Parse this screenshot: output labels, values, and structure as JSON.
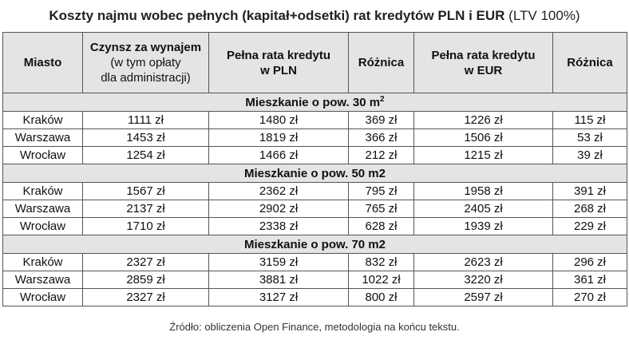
{
  "title": {
    "main": "Koszty najmu wobec pełnych (kapitał+odsetki) rat kredytów PLN i EUR",
    "suffix": "(LTV 100%)"
  },
  "headers": {
    "city": "Miasto",
    "rent_line1": "Czynsz za wynajem",
    "rent_line2": "(w tym opłaty",
    "rent_line3": "dla administracji)",
    "pln_line1": "Pełna rata kredytu",
    "pln_line2": "w PLN",
    "diff_pln": "Różnica",
    "eur_line1": "Pełna rata kredytu",
    "eur_line2": "w EUR",
    "diff_eur": "Różnica"
  },
  "sections": [
    {
      "title": "Mieszkanie o pow. 30 m",
      "title_sup": "2",
      "rows": [
        {
          "city": "Kraków",
          "rent": "1111 zł",
          "pln": "1480 zł",
          "diff_pln": "369 zł",
          "eur": "1226 zł",
          "diff_eur": "115 zł"
        },
        {
          "city": "Warszawa",
          "rent": "1453 zł",
          "pln": "1819 zł",
          "diff_pln": "366 zł",
          "eur": "1506 zł",
          "diff_eur": "53 zł"
        },
        {
          "city": "Wrocław",
          "rent": "1254 zł",
          "pln": "1466 zł",
          "diff_pln": "212 zł",
          "eur": "1215 zł",
          "diff_eur": "39 zł"
        }
      ]
    },
    {
      "title": "Mieszkanie o pow. 50 m2",
      "rows": [
        {
          "city": "Kraków",
          "rent": "1567 zł",
          "pln": "2362 zł",
          "diff_pln": "795 zł",
          "eur": "1958 zł",
          "diff_eur": "391 zł"
        },
        {
          "city": "Warszawa",
          "rent": "2137 zł",
          "pln": "2902 zł",
          "diff_pln": "765 zł",
          "eur": "2405 zł",
          "diff_eur": "268 zł"
        },
        {
          "city": "Wrocław",
          "rent": "1710 zł",
          "pln": "2338 zł",
          "diff_pln": "628 zł",
          "eur": "1939 zł",
          "diff_eur": "229 zł"
        }
      ]
    },
    {
      "title": "Mieszkanie o pow. 70 m2",
      "rows": [
        {
          "city": "Kraków",
          "rent": "2327 zł",
          "pln": "3159 zł",
          "diff_pln": "832 zł",
          "eur": "2623 zł",
          "diff_eur": "296 zł"
        },
        {
          "city": "Warszawa",
          "rent": "2859 zł",
          "pln": "3881 zł",
          "diff_pln": "1022 zł",
          "eur": "3220 zł",
          "diff_eur": "361 zł"
        },
        {
          "city": "Wrocław",
          "rent": "2327 zł",
          "pln": "3127 zł",
          "diff_pln": "800 zł",
          "eur": "2597 zł",
          "diff_eur": "270 zł"
        }
      ]
    }
  ],
  "source": "Źródło: obliczenia Open Finance, metodologia na końcu tekstu."
}
